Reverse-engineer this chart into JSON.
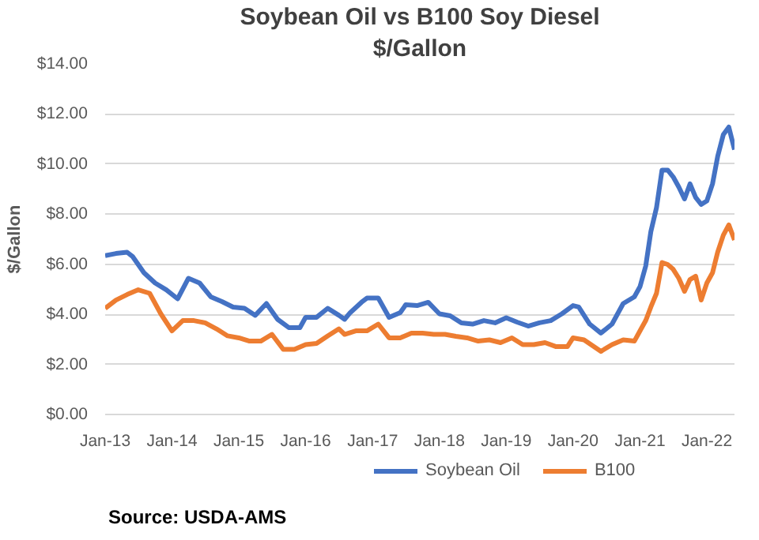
{
  "chart_data": {
    "type": "line",
    "title": "Soybean Oil vs B100 Soy Diesel",
    "subtitle": "$/Gallon",
    "ylabel": "$/Gallon",
    "annotations": [
      "Source: USDA-AMS"
    ],
    "xlim": [
      "2013-01",
      "2022-06"
    ],
    "xticks": [
      {
        "value": "2013-01",
        "label": "Jan-13"
      },
      {
        "value": "2014-01",
        "label": "Jan-14"
      },
      {
        "value": "2015-01",
        "label": "Jan-15"
      },
      {
        "value": "2016-01",
        "label": "Jan-16"
      },
      {
        "value": "2017-01",
        "label": "Jan-17"
      },
      {
        "value": "2018-01",
        "label": "Jan-18"
      },
      {
        "value": "2019-01",
        "label": "Jan-19"
      },
      {
        "value": "2020-01",
        "label": "Jan-20"
      },
      {
        "value": "2021-01",
        "label": "Jan-21"
      },
      {
        "value": "2022-01",
        "label": "Jan-22"
      }
    ],
    "ylim": [
      0,
      14
    ],
    "yticks": [
      {
        "value": 0,
        "label": "$0.00"
      },
      {
        "value": 2,
        "label": "$2.00"
      },
      {
        "value": 4,
        "label": "$4.00"
      },
      {
        "value": 6,
        "label": "$6.00"
      },
      {
        "value": 8,
        "label": "$8.00"
      },
      {
        "value": 10,
        "label": "$10.00"
      },
      {
        "value": 12,
        "label": "$12.00"
      },
      {
        "value": 14,
        "label": "$14.00"
      }
    ],
    "grid": "y",
    "legend": "bottom",
    "marker": "none",
    "line_style": "solid",
    "series": [
      {
        "name": "Soybean Oil",
        "color": "#4472c4",
        "x": [
          "2013-01",
          "2013-03",
          "2013-05",
          "2013-06",
          "2013-08",
          "2013-10",
          "2013-12",
          "2014-02",
          "2014-04",
          "2014-06",
          "2014-08",
          "2014-10",
          "2014-12",
          "2015-02",
          "2015-04",
          "2015-06",
          "2015-08",
          "2015-10",
          "2015-12",
          "2016-01",
          "2016-03",
          "2016-05",
          "2016-07",
          "2016-08",
          "2016-09",
          "2016-11",
          "2016-12",
          "2017-02",
          "2017-04",
          "2017-06",
          "2017-07",
          "2017-09",
          "2017-11",
          "2018-01",
          "2018-03",
          "2018-05",
          "2018-07",
          "2018-09",
          "2018-11",
          "2019-01",
          "2019-03",
          "2019-05",
          "2019-07",
          "2019-09",
          "2019-11",
          "2020-01",
          "2020-02",
          "2020-04",
          "2020-06",
          "2020-08",
          "2020-10",
          "2020-12",
          "2021-01",
          "2021-02",
          "2021-03",
          "2021-04",
          "2021-05",
          "2021-06",
          "2021-07",
          "2021-08",
          "2021-09",
          "2021-10",
          "2021-11",
          "2021-12",
          "2022-01",
          "2022-02",
          "2022-03",
          "2022-04",
          "2022-05",
          "2022-06"
        ],
        "values": [
          6.34,
          6.43,
          6.48,
          6.3,
          5.66,
          5.25,
          4.98,
          4.62,
          5.44,
          5.25,
          4.7,
          4.51,
          4.29,
          4.24,
          3.96,
          4.43,
          3.8,
          3.47,
          3.47,
          3.88,
          3.88,
          4.24,
          3.96,
          3.8,
          4.07,
          4.48,
          4.65,
          4.65,
          3.88,
          4.07,
          4.38,
          4.35,
          4.48,
          4.02,
          3.94,
          3.66,
          3.61,
          3.75,
          3.66,
          3.86,
          3.69,
          3.53,
          3.66,
          3.75,
          4.02,
          4.35,
          4.29,
          3.61,
          3.25,
          3.61,
          4.43,
          4.7,
          5.11,
          5.93,
          7.3,
          8.26,
          9.76,
          9.76,
          9.49,
          9.08,
          8.61,
          9.21,
          8.67,
          8.39,
          8.53,
          9.21,
          10.3,
          11.18,
          11.48,
          10.58
        ]
      },
      {
        "name": "B100",
        "color": "#ed7d31",
        "x": [
          "2013-01",
          "2013-03",
          "2013-05",
          "2013-07",
          "2013-09",
          "2013-11",
          "2014-01",
          "2014-03",
          "2014-05",
          "2014-07",
          "2014-09",
          "2014-11",
          "2015-01",
          "2015-03",
          "2015-05",
          "2015-07",
          "2015-09",
          "2015-11",
          "2016-01",
          "2016-03",
          "2016-05",
          "2016-07",
          "2016-08",
          "2016-10",
          "2016-12",
          "2017-02",
          "2017-04",
          "2017-06",
          "2017-08",
          "2017-10",
          "2017-12",
          "2018-02",
          "2018-04",
          "2018-06",
          "2018-08",
          "2018-10",
          "2018-12",
          "2019-02",
          "2019-04",
          "2019-06",
          "2019-08",
          "2019-10",
          "2019-12",
          "2020-01",
          "2020-03",
          "2020-06",
          "2020-08",
          "2020-10",
          "2020-12",
          "2021-01",
          "2021-02",
          "2021-03",
          "2021-04",
          "2021-05",
          "2021-06",
          "2021-07",
          "2021-08",
          "2021-09",
          "2021-10",
          "2021-11",
          "2021-12",
          "2022-01",
          "2022-02",
          "2022-03",
          "2022-04",
          "2022-05",
          "2022-06"
        ],
        "values": [
          4.24,
          4.57,
          4.79,
          4.98,
          4.84,
          4.02,
          3.34,
          3.75,
          3.75,
          3.66,
          3.42,
          3.14,
          3.06,
          2.93,
          2.93,
          3.2,
          2.6,
          2.6,
          2.79,
          2.84,
          3.14,
          3.42,
          3.2,
          3.34,
          3.34,
          3.61,
          3.06,
          3.06,
          3.25,
          3.25,
          3.2,
          3.2,
          3.12,
          3.06,
          2.93,
          2.98,
          2.87,
          3.06,
          2.79,
          2.79,
          2.87,
          2.71,
          2.71,
          3.06,
          2.98,
          2.52,
          2.79,
          2.98,
          2.93,
          3.34,
          3.75,
          4.29,
          4.84,
          6.07,
          5.99,
          5.8,
          5.44,
          4.92,
          5.39,
          5.52,
          4.57,
          5.25,
          5.66,
          6.48,
          7.16,
          7.57,
          6.97
        ]
      }
    ]
  }
}
